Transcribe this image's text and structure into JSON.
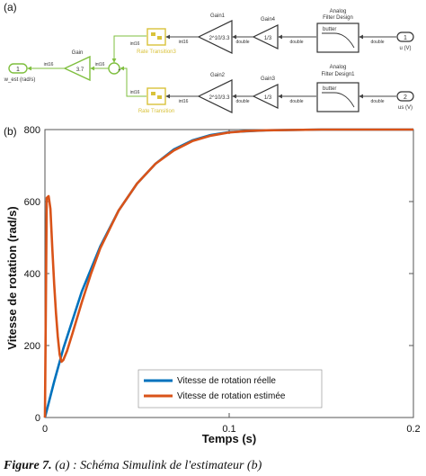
{
  "panel_a": {
    "label": "(a)",
    "out_port": {
      "number": "1",
      "name": "w_est (rad/s)"
    },
    "gain_est": {
      "title": "Gain",
      "value": "3.7"
    },
    "sum": {
      "plus_top": "+",
      "plus_left": "+"
    },
    "upper_row": {
      "rate_transition": "Rate Transition3",
      "gain1": {
        "title": "Gain1",
        "value": "2^10/3.3"
      },
      "gain4": {
        "title": "Gain4",
        "value": "1/3"
      },
      "filter": {
        "title": "Analog Filter Design",
        "text": "butter"
      },
      "in_port": {
        "number": "1",
        "name": "u (V)"
      },
      "sig_sum_in": "int16",
      "sig_rt_in": "int16",
      "sig_gain1_in": "double",
      "sig_gain4_in": "double",
      "sig_filter_in": "double",
      "sig_rt_label": "int16"
    },
    "lower_row": {
      "rate_transition": "Rate Transition",
      "gain2": {
        "title": "Gain2",
        "value": "2^10/3.3"
      },
      "gain3": {
        "title": "Gain3",
        "value": "1/3"
      },
      "filter": {
        "title": "Analog Filter Design1",
        "text": "butter"
      },
      "in_port": {
        "number": "2",
        "name": "us (V)"
      },
      "sig_sum_in": "int16",
      "sig_rt_in": "int16",
      "sig_gain2_in": "double",
      "sig_gain3_in": "double",
      "sig_filter_in": "double",
      "sig_rt_label": "int16"
    },
    "sig_gain_est_in": "int16",
    "colors": {
      "green": "#7fbf3f",
      "yellow": "#d9c23a",
      "block": "#333333"
    }
  },
  "panel_b": {
    "label": "(b)",
    "chart_data": {
      "type": "line",
      "xlabel": "Temps (s)",
      "ylabel": "Vitesse de rotation (rad/s)",
      "xlim": [
        0,
        0.2
      ],
      "ylim": [
        0,
        800
      ],
      "xticks": [
        "0",
        "0.1",
        "0.2"
      ],
      "yticks": [
        "0",
        "200",
        "400",
        "600",
        "800"
      ],
      "grid": false,
      "legend_position": "bottom-center",
      "series": [
        {
          "name": "Vitesse de rotation réelle",
          "color": "#0072bd",
          "x": [
            0,
            0.005,
            0.01,
            0.02,
            0.03,
            0.04,
            0.05,
            0.06,
            0.07,
            0.08,
            0.09,
            0.1,
            0.12,
            0.15,
            0.2
          ],
          "y": [
            0,
            100,
            192,
            350,
            475,
            575,
            650,
            705,
            745,
            770,
            785,
            793,
            798,
            800,
            800
          ]
        },
        {
          "name": "Vitesse de rotation estimée",
          "color": "#d95319",
          "x": [
            0,
            0.001,
            0.002,
            0.003,
            0.004,
            0.005,
            0.006,
            0.007,
            0.008,
            0.009,
            0.01,
            0.012,
            0.015,
            0.02,
            0.025,
            0.03,
            0.04,
            0.05,
            0.06,
            0.07,
            0.08,
            0.09,
            0.1,
            0.11,
            0.12,
            0.15,
            0.2
          ],
          "y": [
            0,
            610,
            615,
            580,
            470,
            370,
            290,
            225,
            175,
            155,
            160,
            185,
            235,
            320,
            400,
            470,
            575,
            650,
            705,
            742,
            768,
            783,
            792,
            796,
            798,
            800,
            800
          ]
        }
      ]
    }
  },
  "caption": {
    "lead": "Figure 7.",
    "text": " (a) : Schéma Simulink de l'estimateur (b)"
  }
}
